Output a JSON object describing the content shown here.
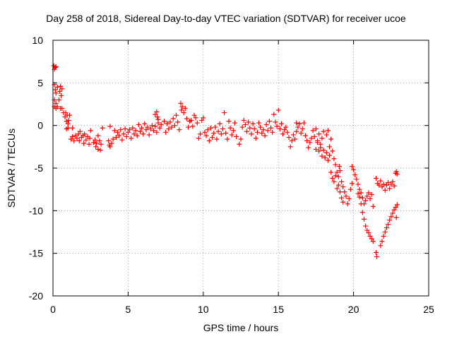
{
  "chart_data": {
    "type": "scatter",
    "title": "Day 258 of 2018, Sidereal Day-to-day VTEC variation (SDTVAR) for receiver ucoe",
    "xlabel": "GPS time / hours",
    "ylabel": "SDTVAR / TECUs",
    "xlim": [
      0,
      25
    ],
    "ylim": [
      -20,
      10
    ],
    "xticks": [
      0,
      5,
      10,
      15,
      20,
      25
    ],
    "yticks": [
      -20,
      -15,
      -10,
      -5,
      0,
      5,
      10
    ],
    "grid": true,
    "marker": "+",
    "color": "#ff0000",
    "series": [
      {
        "name": "SDTVAR",
        "points": [
          [
            0.05,
            7.0
          ],
          [
            0.1,
            6.6
          ],
          [
            0.15,
            6.8
          ],
          [
            0.2,
            6.9
          ],
          [
            0.1,
            4.8
          ],
          [
            0.15,
            4.2
          ],
          [
            0.2,
            3.8
          ],
          [
            0.1,
            3.0
          ],
          [
            0.2,
            2.6
          ],
          [
            0.1,
            2.2
          ],
          [
            0.2,
            2.0
          ],
          [
            0.3,
            2.2
          ],
          [
            0.3,
            4.5
          ],
          [
            0.4,
            3.0
          ],
          [
            0.45,
            4.0
          ],
          [
            0.5,
            4.6
          ],
          [
            0.5,
            2.0
          ],
          [
            0.55,
            3.5
          ],
          [
            0.6,
            4.3
          ],
          [
            0.6,
            2.0
          ],
          [
            0.7,
            1.5
          ],
          [
            0.8,
            1.0
          ],
          [
            0.85,
            1.5
          ],
          [
            0.9,
            0.5
          ],
          [
            0.95,
            1.2
          ],
          [
            1.0,
            0.2
          ],
          [
            1.05,
            0.6
          ],
          [
            1.1,
            1.2
          ],
          [
            0.9,
            -0.4
          ],
          [
            1.0,
            -0.3
          ],
          [
            1.3,
            -0.3
          ],
          [
            1.2,
            -1.6
          ],
          [
            1.3,
            -1.3
          ],
          [
            1.4,
            -1.8
          ],
          [
            1.5,
            -1.2
          ],
          [
            1.6,
            -1.5
          ],
          [
            1.7,
            -1.0
          ],
          [
            1.75,
            -1.8
          ],
          [
            1.8,
            -0.7
          ],
          [
            1.9,
            -1.4
          ],
          [
            2.0,
            -1.2
          ],
          [
            2.05,
            -2.1
          ],
          [
            2.1,
            -1.0
          ],
          [
            2.2,
            -1.7
          ],
          [
            2.3,
            -1.3
          ],
          [
            2.4,
            -2.2
          ],
          [
            2.45,
            -1.5
          ],
          [
            2.5,
            -0.6
          ],
          [
            2.7,
            -2.0
          ],
          [
            2.8,
            -1.7
          ],
          [
            2.85,
            -2.5
          ],
          [
            2.9,
            -2.1
          ],
          [
            3.0,
            -2.8
          ],
          [
            3.1,
            -1.8
          ],
          [
            3.15,
            -2.9
          ],
          [
            3.2,
            -2.2
          ],
          [
            3.0,
            -1.2
          ],
          [
            3.3,
            -0.3
          ],
          [
            3.7,
            -1.8
          ],
          [
            3.75,
            -2.3
          ],
          [
            3.8,
            -2.5
          ],
          [
            3.9,
            -2.1
          ],
          [
            4.0,
            -1.6
          ],
          [
            3.8,
            -0.1
          ],
          [
            4.1,
            -0.6
          ],
          [
            4.2,
            -1.4
          ],
          [
            4.3,
            -0.8
          ],
          [
            4.4,
            -1.2
          ],
          [
            4.5,
            -0.5
          ],
          [
            4.6,
            -1.7
          ],
          [
            4.7,
            -1.0
          ],
          [
            4.8,
            -0.4
          ],
          [
            4.9,
            -1.3
          ],
          [
            5.0,
            -0.8
          ],
          [
            5.1,
            -0.5
          ],
          [
            5.2,
            -1.5
          ],
          [
            5.3,
            -0.3
          ],
          [
            5.4,
            -1.0
          ],
          [
            5.5,
            -0.6
          ],
          [
            5.6,
            -1.2
          ],
          [
            5.7,
            0.1
          ],
          [
            5.8,
            -0.7
          ],
          [
            5.9,
            -0.3
          ],
          [
            6.0,
            -1.0
          ],
          [
            6.1,
            0.2
          ],
          [
            6.2,
            -0.5
          ],
          [
            6.3,
            -0.2
          ],
          [
            6.4,
            -1.1
          ],
          [
            6.5,
            -0.4
          ],
          [
            6.6,
            0.0
          ],
          [
            6.7,
            -0.6
          ],
          [
            6.8,
            -0.1
          ],
          [
            6.9,
            -0.8
          ],
          [
            7.0,
            0.3
          ],
          [
            7.1,
            -0.3
          ],
          [
            7.2,
            0.1
          ],
          [
            6.8,
            1.3
          ],
          [
            6.9,
            1.6
          ],
          [
            6.95,
            1.0
          ],
          [
            7.0,
            0.7
          ],
          [
            7.4,
            0.5
          ],
          [
            7.5,
            -0.8
          ],
          [
            7.6,
            0.2
          ],
          [
            7.7,
            -0.4
          ],
          [
            7.8,
            0.4
          ],
          [
            7.9,
            -0.2
          ],
          [
            8.0,
            0.8
          ],
          [
            8.1,
            0.0
          ],
          [
            8.2,
            1.2
          ],
          [
            8.3,
            0.4
          ],
          [
            8.4,
            -0.5
          ],
          [
            8.5,
            2.6
          ],
          [
            8.55,
            1.8
          ],
          [
            8.6,
            2.2
          ],
          [
            8.7,
            1.5
          ],
          [
            8.8,
            2.0
          ],
          [
            8.9,
            0.8
          ],
          [
            9.0,
            -0.2
          ],
          [
            9.1,
            0.5
          ],
          [
            9.2,
            0.6
          ],
          [
            9.3,
            -0.1
          ],
          [
            9.4,
            1.2
          ],
          [
            9.5,
            0.9
          ],
          [
            9.6,
            0.3
          ],
          [
            9.7,
            -1.5
          ],
          [
            9.8,
            -1.0
          ],
          [
            9.9,
            0.6
          ],
          [
            10.0,
            0.9
          ],
          [
            10.1,
            -0.8
          ],
          [
            10.2,
            -1.2
          ],
          [
            10.3,
            -0.5
          ],
          [
            10.4,
            -1.8
          ],
          [
            10.5,
            -0.3
          ],
          [
            10.6,
            -1.4
          ],
          [
            10.7,
            -0.9
          ],
          [
            10.8,
            -0.2
          ],
          [
            10.9,
            -1.6
          ],
          [
            11.0,
            -0.7
          ],
          [
            11.1,
            0.2
          ],
          [
            11.2,
            -1.0
          ],
          [
            11.3,
            -0.4
          ],
          [
            11.4,
            1.5
          ],
          [
            11.5,
            -0.9
          ],
          [
            11.6,
            -1.6
          ],
          [
            11.7,
            0.5
          ],
          [
            11.8,
            -0.3
          ],
          [
            11.9,
            -1.1
          ],
          [
            12.0,
            -0.6
          ],
          [
            12.1,
            0.3
          ],
          [
            12.2,
            -1.3
          ],
          [
            12.4,
            -2.2
          ],
          [
            12.5,
            -1.6
          ],
          [
            12.6,
            -0.2
          ],
          [
            12.7,
            0.6
          ],
          [
            12.8,
            0.1
          ],
          [
            12.9,
            -0.7
          ],
          [
            13.0,
            0.4
          ],
          [
            13.1,
            -0.3
          ],
          [
            13.2,
            -1.0
          ],
          [
            13.3,
            0.2
          ],
          [
            13.4,
            -0.4
          ],
          [
            13.5,
            -1.5
          ],
          [
            13.6,
            -0.8
          ],
          [
            13.7,
            0.3
          ],
          [
            13.8,
            -0.2
          ],
          [
            13.9,
            -0.9
          ],
          [
            14.0,
            -0.5
          ],
          [
            14.1,
            -1.2
          ],
          [
            14.2,
            0.1
          ],
          [
            14.3,
            -0.6
          ],
          [
            14.4,
            0.5
          ],
          [
            14.5,
            -0.3
          ],
          [
            14.6,
            -0.8
          ],
          [
            14.7,
            1.3
          ],
          [
            14.8,
            0.4
          ],
          [
            14.9,
            -0.1
          ],
          [
            15.0,
            1.8
          ],
          [
            15.1,
            -0.4
          ],
          [
            15.2,
            0.2
          ],
          [
            15.3,
            -1.0
          ],
          [
            15.4,
            -0.5
          ],
          [
            15.5,
            -0.2
          ],
          [
            15.6,
            -0.8
          ],
          [
            15.7,
            -1.4
          ],
          [
            15.8,
            -2.5
          ],
          [
            15.9,
            -1.8
          ],
          [
            16.0,
            -1.1
          ],
          [
            16.1,
            -1.6
          ],
          [
            16.2,
            -0.7
          ],
          [
            16.2,
            0.3
          ],
          [
            16.3,
            -0.2
          ],
          [
            16.4,
            0.2
          ],
          [
            16.5,
            -0.9
          ],
          [
            16.6,
            -0.4
          ],
          [
            16.7,
            0.3
          ],
          [
            16.8,
            -1.2
          ],
          [
            16.9,
            -1.8
          ],
          [
            17.0,
            -2.6
          ],
          [
            17.1,
            -2.0
          ],
          [
            17.2,
            -1.5
          ],
          [
            17.3,
            -0.6
          ],
          [
            17.4,
            -1.3
          ],
          [
            17.5,
            -0.4
          ],
          [
            17.6,
            -1.8
          ],
          [
            17.7,
            -1.0
          ],
          [
            17.8,
            -2.2
          ],
          [
            17.9,
            -1.5
          ],
          [
            18.0,
            -0.7
          ],
          [
            17.5,
            -2.8
          ],
          [
            17.6,
            -2.0
          ],
          [
            17.7,
            -3.0
          ],
          [
            17.8,
            -2.6
          ],
          [
            17.9,
            -3.6
          ],
          [
            18.0,
            -2.9
          ],
          [
            18.1,
            -3.8
          ],
          [
            18.2,
            -3.2
          ],
          [
            18.3,
            -4.1
          ],
          [
            18.4,
            -3.5
          ],
          [
            18.2,
            -1.1
          ],
          [
            18.3,
            -0.6
          ],
          [
            18.4,
            -2.5
          ],
          [
            18.5,
            -1.6
          ],
          [
            18.6,
            -3.0
          ],
          [
            18.7,
            -3.9
          ],
          [
            18.8,
            -4.6
          ],
          [
            18.9,
            -5.5
          ],
          [
            19.0,
            -6.0
          ],
          [
            19.05,
            -4.8
          ],
          [
            19.1,
            -5.3
          ],
          [
            19.2,
            -6.6
          ],
          [
            19.3,
            -7.2
          ],
          [
            19.4,
            -7.8
          ],
          [
            19.5,
            -8.3
          ],
          [
            19.6,
            -9.2
          ],
          [
            19.7,
            -8.6
          ],
          [
            19.8,
            -7.5
          ],
          [
            19.9,
            -6.8
          ],
          [
            18.5,
            -5.5
          ],
          [
            18.6,
            -6.2
          ],
          [
            18.7,
            -6.6
          ],
          [
            18.8,
            -5.9
          ],
          [
            18.9,
            -7.4
          ],
          [
            19.0,
            -7.0
          ],
          [
            19.1,
            -7.8
          ],
          [
            19.2,
            -8.5
          ],
          [
            19.3,
            -9.0
          ],
          [
            19.9,
            -4.8
          ],
          [
            20.0,
            -5.2
          ],
          [
            20.1,
            -5.8
          ],
          [
            20.2,
            -6.3
          ],
          [
            20.3,
            -6.9
          ],
          [
            20.4,
            -7.5
          ],
          [
            20.5,
            -7.9
          ],
          [
            20.6,
            -8.5
          ],
          [
            20.7,
            -9.2
          ],
          [
            20.8,
            -8.8
          ],
          [
            20.9,
            -8.3
          ],
          [
            21.0,
            -7.9
          ],
          [
            21.1,
            -8.6
          ],
          [
            21.2,
            -8.1
          ],
          [
            21.3,
            -9.5
          ],
          [
            20.3,
            -8.0
          ],
          [
            20.4,
            -8.4
          ],
          [
            20.5,
            -9.2
          ],
          [
            20.6,
            -10.2
          ],
          [
            20.7,
            -11.0
          ],
          [
            20.8,
            -11.8
          ],
          [
            20.9,
            -12.3
          ],
          [
            21.0,
            -12.6
          ],
          [
            21.1,
            -13.0
          ],
          [
            21.2,
            -13.3
          ],
          [
            21.3,
            -13.6
          ],
          [
            21.5,
            -14.9
          ],
          [
            21.55,
            -15.4
          ],
          [
            21.8,
            -14.1
          ],
          [
            21.9,
            -13.6
          ],
          [
            22.0,
            -13.0
          ],
          [
            22.1,
            -12.5
          ],
          [
            22.2,
            -12.0
          ],
          [
            22.3,
            -11.6
          ],
          [
            22.4,
            -11.1
          ],
          [
            22.5,
            -10.7
          ],
          [
            22.6,
            -10.3
          ],
          [
            22.7,
            -9.9
          ],
          [
            22.8,
            -9.6
          ],
          [
            22.85,
            -10.8
          ],
          [
            22.9,
            -9.3
          ],
          [
            21.5,
            -6.2
          ],
          [
            21.6,
            -6.8
          ],
          [
            21.7,
            -7.0
          ],
          [
            21.8,
            -6.5
          ],
          [
            21.9,
            -7.2
          ],
          [
            22.0,
            -6.9
          ],
          [
            22.1,
            -7.6
          ],
          [
            22.2,
            -7.0
          ],
          [
            22.3,
            -6.7
          ],
          [
            22.4,
            -7.4
          ],
          [
            22.5,
            -6.9
          ],
          [
            22.6,
            -6.6
          ],
          [
            22.7,
            -7.1
          ],
          [
            22.8,
            -5.6
          ],
          [
            22.85,
            -5.4
          ],
          [
            22.9,
            -5.7
          ]
        ]
      }
    ]
  }
}
